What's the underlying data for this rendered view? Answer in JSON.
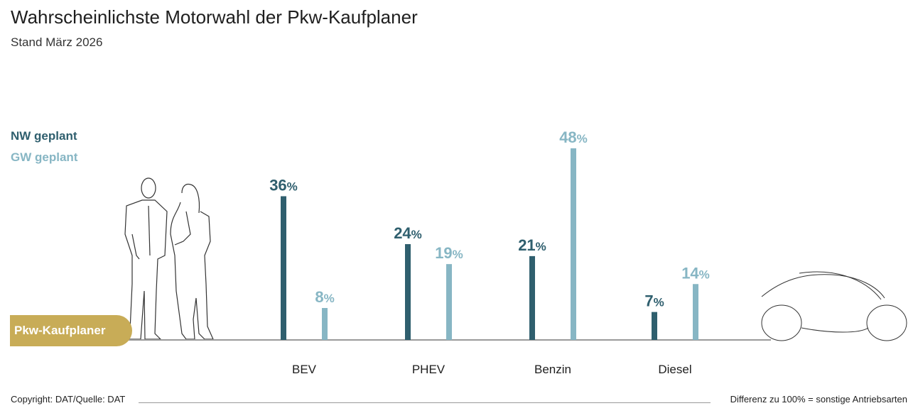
{
  "title": "Wahrscheinlichste Motorwahl der Pkw-Kaufplaner",
  "subtitle": "Stand März 2026",
  "badge_label": "Pkw-Kaufplaner",
  "footer": {
    "left": "Copyright: DAT/Quelle: DAT",
    "right": "Differenz zu 100% = sonstige Antriebsarten"
  },
  "colors": {
    "nw": "#2f5f6e",
    "gw": "#87b6c4",
    "badge": "#c8ac57",
    "axis": "#9a9a9a"
  },
  "chart_data": {
    "type": "bar",
    "title": "Wahrscheinlichste Motorwahl der Pkw-Kaufplaner",
    "subtitle": "Stand März 2026",
    "categories": [
      "BEV",
      "PHEV",
      "Benzin",
      "Diesel"
    ],
    "series": [
      {
        "name": "NW geplant",
        "values": [
          36,
          24,
          21,
          7
        ]
      },
      {
        "name": "GW geplant",
        "values": [
          8,
          19,
          48,
          14
        ]
      }
    ],
    "unit": "%",
    "ylim": [
      0,
      50
    ],
    "grid": false,
    "legend_position": "left"
  }
}
